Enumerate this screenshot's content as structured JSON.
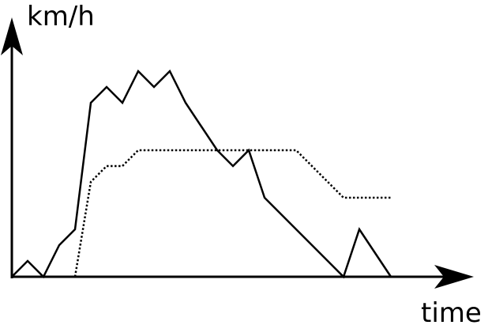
{
  "chart_data": {
    "type": "line",
    "xlabel": "time",
    "ylabel": "km/h",
    "grid": false,
    "legend": "none",
    "tick_labels": false,
    "series": [
      {
        "style": "solid",
        "points": [
          [
            0,
            0
          ],
          [
            1,
            1
          ],
          [
            2,
            0
          ],
          [
            3,
            2
          ],
          [
            4,
            3
          ],
          [
            5,
            11
          ],
          [
            6,
            12
          ],
          [
            7,
            11
          ],
          [
            8,
            13
          ],
          [
            9,
            12
          ],
          [
            10,
            13
          ],
          [
            11,
            11
          ],
          [
            12,
            9.5
          ],
          [
            13,
            8
          ],
          [
            14,
            7
          ],
          [
            15,
            8
          ],
          [
            16,
            5
          ],
          [
            17,
            4
          ],
          [
            18,
            3
          ],
          [
            19,
            2
          ],
          [
            20,
            1
          ],
          [
            21,
            0
          ],
          [
            22,
            3
          ],
          [
            23,
            1.5
          ],
          [
            24,
            0
          ]
        ]
      },
      {
        "style": "dotted",
        "points": [
          [
            4,
            0
          ],
          [
            5,
            6
          ],
          [
            6,
            7
          ],
          [
            7,
            7
          ],
          [
            8,
            8
          ],
          [
            9,
            8
          ],
          [
            10,
            8
          ],
          [
            11,
            8
          ],
          [
            12,
            8
          ],
          [
            13,
            8
          ],
          [
            14,
            8
          ],
          [
            15,
            8
          ],
          [
            16,
            8
          ],
          [
            17,
            8
          ],
          [
            18,
            8
          ],
          [
            19,
            7
          ],
          [
            20,
            6
          ],
          [
            21,
            5
          ],
          [
            22,
            5
          ],
          [
            23,
            5
          ],
          [
            24,
            5
          ]
        ]
      }
    ],
    "colors": {
      "line": "#000000",
      "axis": "#000000",
      "background": "#ffffff"
    }
  }
}
